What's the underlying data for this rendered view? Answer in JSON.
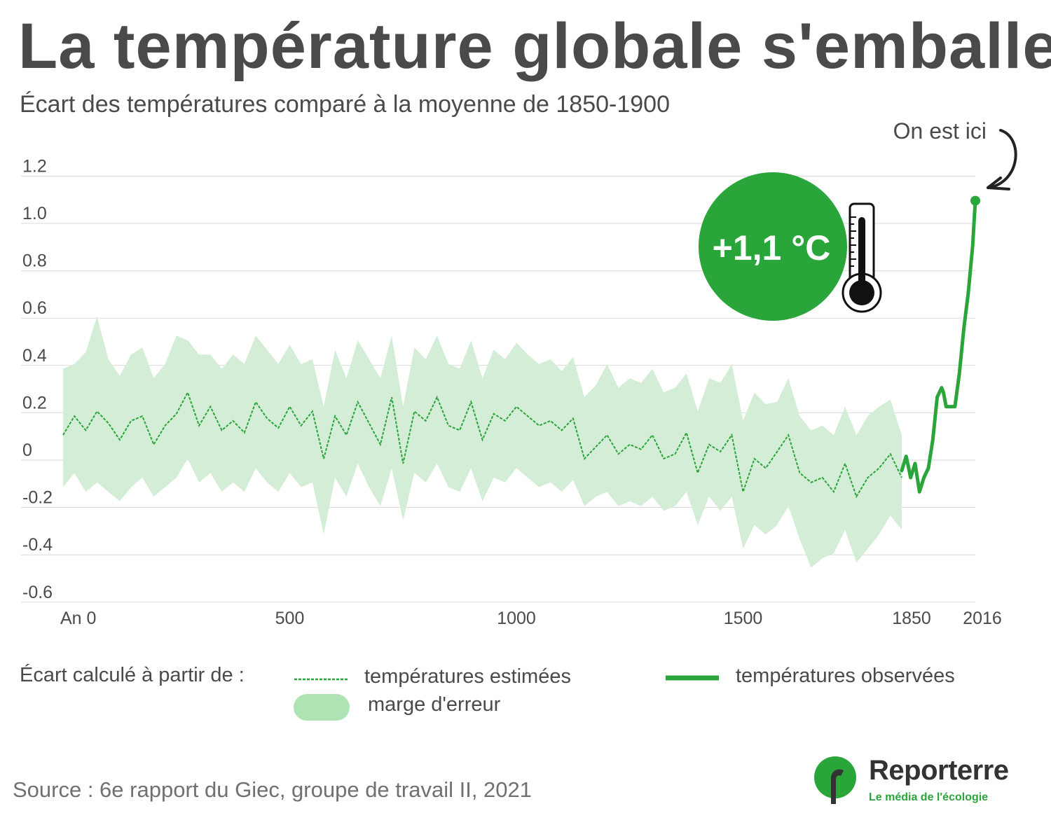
{
  "title": "La température globale s'emballe",
  "subtitle": "Écart des températures comparé à la moyenne de 1850-1900",
  "annotations": {
    "here_label": "On est ici",
    "badge_value": "+1,1 °C"
  },
  "legend": {
    "intro": "Écart calculé à partir de :",
    "estimated": "températures estimées",
    "observed": "températures observées",
    "uncertainty": "marge d'erreur"
  },
  "source": "Source : 6e rapport du Giec, groupe de travail II, 2021",
  "brand": {
    "name": "Reporterre",
    "tagline": "Le média de l'écologie"
  },
  "colors": {
    "accent_green": "#2aa53a",
    "band_green": "#d4edd6",
    "legend_band_green": "#aee3b3",
    "text": "#4a4a4a",
    "grid": "#d9d9d9"
  },
  "chart_data": {
    "type": "line",
    "y_ticks": [
      "1.2",
      "1.0",
      "0.8",
      "0.6",
      "0.4",
      "0.2",
      "0",
      "-0.2",
      "-0.4",
      "-0.6"
    ],
    "x_tick_labels": [
      "An  0",
      "500",
      "1000",
      "1500",
      "1850",
      "2016"
    ],
    "ylim": [
      -0.6,
      1.2
    ],
    "xlim": [
      0,
      2016
    ],
    "grid": true,
    "series": [
      {
        "name": "températures estimées",
        "style": "dashed",
        "x": [
          0,
          25,
          50,
          75,
          100,
          125,
          150,
          175,
          200,
          225,
          250,
          275,
          300,
          325,
          350,
          375,
          400,
          425,
          450,
          475,
          500,
          525,
          550,
          575,
          600,
          625,
          650,
          675,
          700,
          725,
          750,
          775,
          800,
          825,
          850,
          875,
          900,
          925,
          950,
          975,
          1000,
          1025,
          1050,
          1075,
          1100,
          1125,
          1150,
          1175,
          1200,
          1225,
          1250,
          1275,
          1300,
          1325,
          1350,
          1375,
          1400,
          1425,
          1450,
          1475,
          1500,
          1525,
          1550,
          1575,
          1600,
          1625,
          1650,
          1675,
          1700,
          1725,
          1750,
          1775,
          1800,
          1825,
          1850
        ],
        "values": [
          0.1,
          0.18,
          0.12,
          0.2,
          0.15,
          0.08,
          0.16,
          0.18,
          0.06,
          0.14,
          0.19,
          0.28,
          0.14,
          0.22,
          0.12,
          0.16,
          0.11,
          0.24,
          0.17,
          0.13,
          0.22,
          0.14,
          0.2,
          0.0,
          0.18,
          0.1,
          0.24,
          0.15,
          0.06,
          0.26,
          -0.02,
          0.2,
          0.16,
          0.26,
          0.14,
          0.12,
          0.24,
          0.08,
          0.19,
          0.16,
          0.22,
          0.18,
          0.14,
          0.16,
          0.12,
          0.17,
          0.0,
          0.05,
          0.1,
          0.02,
          0.06,
          0.04,
          0.1,
          0.0,
          0.02,
          0.11,
          -0.06,
          0.06,
          0.03,
          0.1,
          -0.14,
          0.0,
          -0.04,
          0.03,
          0.1,
          -0.06,
          -0.1,
          -0.08,
          -0.14,
          -0.02,
          -0.16,
          -0.08,
          -0.04,
          0.02,
          -0.08
        ]
      },
      {
        "name": "températures observées",
        "style": "solid",
        "x": [
          1850,
          1860,
          1870,
          1880,
          1890,
          1900,
          1910,
          1920,
          1930,
          1940,
          1944,
          1950,
          1960,
          1970,
          1980,
          1990,
          2000,
          2010,
          2016
        ],
        "values": [
          -0.05,
          0.01,
          -0.08,
          -0.02,
          -0.14,
          -0.08,
          -0.04,
          0.08,
          0.26,
          0.3,
          0.28,
          0.22,
          0.22,
          0.22,
          0.36,
          0.55,
          0.7,
          0.9,
          1.09
        ]
      },
      {
        "name": "marge d'erreur",
        "style": "band",
        "x": [
          0,
          25,
          50,
          75,
          100,
          125,
          150,
          175,
          200,
          225,
          250,
          275,
          300,
          325,
          350,
          375,
          400,
          425,
          450,
          475,
          500,
          525,
          550,
          575,
          600,
          625,
          650,
          675,
          700,
          725,
          750,
          775,
          800,
          825,
          850,
          875,
          900,
          925,
          950,
          975,
          1000,
          1025,
          1050,
          1075,
          1100,
          1125,
          1150,
          1175,
          1200,
          1225,
          1250,
          1275,
          1300,
          1325,
          1350,
          1375,
          1400,
          1425,
          1450,
          1475,
          1500,
          1525,
          1550,
          1575,
          1600,
          1625,
          1650,
          1675,
          1700,
          1725,
          1750,
          1775,
          1800,
          1825,
          1850
        ],
        "upper": [
          0.38,
          0.4,
          0.45,
          0.6,
          0.42,
          0.35,
          0.44,
          0.47,
          0.34,
          0.4,
          0.52,
          0.5,
          0.44,
          0.44,
          0.38,
          0.44,
          0.4,
          0.52,
          0.46,
          0.4,
          0.48,
          0.4,
          0.42,
          0.22,
          0.46,
          0.34,
          0.5,
          0.42,
          0.34,
          0.52,
          0.22,
          0.47,
          0.42,
          0.52,
          0.4,
          0.38,
          0.5,
          0.34,
          0.46,
          0.42,
          0.49,
          0.44,
          0.4,
          0.42,
          0.37,
          0.43,
          0.26,
          0.31,
          0.4,
          0.3,
          0.34,
          0.32,
          0.38,
          0.28,
          0.3,
          0.36,
          0.2,
          0.34,
          0.32,
          0.4,
          0.16,
          0.28,
          0.23,
          0.24,
          0.34,
          0.18,
          0.12,
          0.14,
          0.1,
          0.22,
          0.1,
          0.18,
          0.22,
          0.25,
          0.1
        ],
        "lower": [
          -0.12,
          -0.06,
          -0.14,
          -0.1,
          -0.14,
          -0.18,
          -0.12,
          -0.08,
          -0.16,
          -0.12,
          -0.08,
          0.0,
          -0.1,
          -0.06,
          -0.14,
          -0.1,
          -0.14,
          -0.04,
          -0.1,
          -0.14,
          -0.06,
          -0.12,
          -0.1,
          -0.32,
          -0.08,
          -0.16,
          -0.02,
          -0.12,
          -0.2,
          -0.04,
          -0.26,
          -0.06,
          -0.1,
          -0.02,
          -0.12,
          -0.14,
          -0.04,
          -0.18,
          -0.08,
          -0.1,
          -0.04,
          -0.08,
          -0.12,
          -0.1,
          -0.14,
          -0.09,
          -0.2,
          -0.16,
          -0.14,
          -0.2,
          -0.18,
          -0.2,
          -0.16,
          -0.22,
          -0.2,
          -0.14,
          -0.28,
          -0.16,
          -0.22,
          -0.16,
          -0.38,
          -0.28,
          -0.32,
          -0.28,
          -0.2,
          -0.34,
          -0.46,
          -0.42,
          -0.4,
          -0.3,
          -0.44,
          -0.38,
          -0.32,
          -0.24,
          -0.3
        ]
      }
    ]
  }
}
